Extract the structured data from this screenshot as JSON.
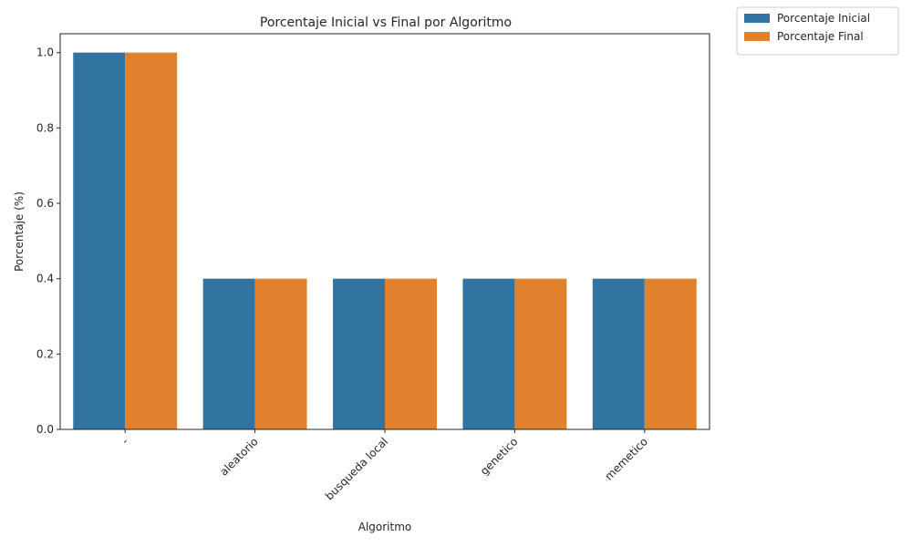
{
  "chart_data": {
    "type": "bar",
    "title": "Porcentaje Inicial vs Final por Algoritmo",
    "xlabel": "Algoritmo",
    "ylabel": "Porcentaje (%)",
    "categories": [
      "-",
      "aleatorio",
      "busqueda local",
      "genetico",
      "memetico"
    ],
    "series": [
      {
        "name": "Porcentaje Inicial",
        "color": "#3274a1",
        "values": [
          1.0,
          0.4,
          0.4,
          0.4,
          0.4
        ]
      },
      {
        "name": "Porcentaje Final",
        "color": "#e1812c",
        "values": [
          1.0,
          0.4,
          0.4,
          0.4,
          0.4
        ]
      }
    ],
    "ylim": [
      0,
      1.05
    ],
    "yticks": [
      "0.0",
      "0.2",
      "0.4",
      "0.6",
      "0.8",
      "1.0"
    ],
    "grid": false,
    "legend_position": "outside-top-right",
    "xtick_rotation": 45
  }
}
